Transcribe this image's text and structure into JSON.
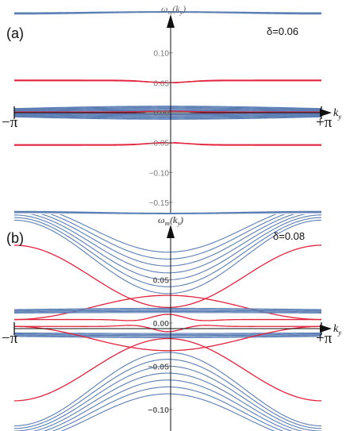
{
  "colors": {
    "blue": "#5b7fb5",
    "red": "#e3223c",
    "axis": "#111111",
    "tick_text": "#777777"
  },
  "chart_data": [
    {
      "type": "line",
      "panel_label": "(a)",
      "delta_text": "δ=0.06",
      "ylabel": {
        "main": "ω",
        "sub": "m",
        "paren": "(k",
        "sub2": "y",
        "close": ")"
      },
      "xlabel": {
        "main": "k",
        "sub": "y"
      },
      "x_left_label": "−π",
      "x_right_label": "+π",
      "xlim": [
        -3.1416,
        3.1416
      ],
      "ylim": [
        -0.17,
        0.17
      ],
      "yticks": [
        0.1,
        0.05,
        0.0,
        -0.05,
        -0.1,
        -0.15
      ],
      "ytick_labels": [
        "0.10",
        "0.05",
        "0.00",
        "−0.05",
        "−0.10",
        "−0.15"
      ],
      "series": [
        {
          "color": "blue",
          "kind": "cos",
          "offsets": [
            0.168,
            0.1686,
            0.1692
          ],
          "amps": [
            -0.003,
            -0.0025,
            -0.002
          ]
        },
        {
          "color": "red",
          "kind": "dip",
          "offsets": [
            0.054,
            0.0535,
            0.0545
          ],
          "amps": [
            -0.004,
            -0.003,
            -0.0045
          ]
        },
        {
          "color": "blue",
          "kind": "band",
          "offsets": [
            0.007,
            0.006,
            0.005,
            0.004,
            0.003,
            0.002,
            0.001
          ],
          "amps": [
            0.004,
            0.0035,
            0.003,
            0.0025,
            0.002,
            0.0015,
            0.001
          ]
        },
        {
          "color": "red",
          "kind": "dip",
          "offsets": [
            0.0012,
            -0.0012
          ],
          "amps": [
            0.0015,
            -0.0015
          ]
        },
        {
          "color": "blue",
          "kind": "band",
          "offsets": [
            -0.007,
            -0.006,
            -0.005,
            -0.004,
            -0.003,
            -0.002,
            -0.001
          ],
          "amps": [
            -0.004,
            -0.0035,
            -0.003,
            -0.0025,
            -0.002,
            -0.0015,
            -0.001
          ]
        },
        {
          "color": "red",
          "kind": "dip",
          "offsets": [
            -0.054,
            -0.0535,
            -0.0545
          ],
          "amps": [
            0.004,
            0.003,
            0.0045
          ]
        },
        {
          "color": "blue",
          "kind": "cos",
          "offsets": [
            -0.168,
            -0.1686,
            -0.1692
          ],
          "amps": [
            0.003,
            0.0025,
            0.002
          ]
        }
      ]
    },
    {
      "type": "line",
      "panel_label": "(b)",
      "delta_text": "δ=0.08",
      "ylabel": {
        "main": "ω",
        "sub": "m",
        "paren": "(k",
        "sub2": "y",
        "close": ")"
      },
      "xlabel": {
        "main": "k",
        "sub": "y"
      },
      "x_left_label": "−π",
      "x_right_label": "+π",
      "xlim": [
        -3.1416,
        3.1416
      ],
      "ylim": [
        -0.125,
        0.112
      ],
      "yticks": [
        0.05,
        0.0,
        -0.05,
        -0.1
      ],
      "ytick_labels": [
        "0.05",
        "0.00",
        "−0.05",
        "−0.10"
      ],
      "series": [
        {
          "color": "blue",
          "kind": "upper",
          "offsets": [
            0.034,
            0.042,
            0.05,
            0.058,
            0.066,
            0.074,
            0.082
          ],
          "amps": [
            0.085,
            0.08,
            0.075,
            0.07,
            0.065,
            0.06,
            0.055
          ]
        },
        {
          "color": "red",
          "kind": "upper",
          "offsets": [
            0.018
          ],
          "amps": [
            0.072
          ]
        },
        {
          "color": "red",
          "kind": "cross",
          "offsets": [
            0.018
          ],
          "amps": [
            0.014
          ]
        },
        {
          "color": "blue",
          "kind": "band",
          "offsets": [
            0.0155,
            0.0145,
            0.0135,
            0.0125,
            0.0115
          ],
          "amps": [
            0.0015,
            0.0012,
            0.001,
            0.0008,
            0.0006
          ]
        },
        {
          "color": "red",
          "kind": "wiggle",
          "offsets": [
            0.004,
            -0.004
          ],
          "amps": [
            0.006,
            -0.006
          ]
        },
        {
          "color": "blue",
          "kind": "band",
          "offsets": [
            -0.0155,
            -0.0145,
            -0.0135,
            -0.0125,
            -0.0115
          ],
          "amps": [
            -0.0015,
            -0.0012,
            -0.001,
            -0.0008,
            -0.0006
          ]
        },
        {
          "color": "red",
          "kind": "cross",
          "offsets": [
            -0.018
          ],
          "amps": [
            -0.014
          ]
        },
        {
          "color": "red",
          "kind": "upper",
          "offsets": [
            -0.018
          ],
          "amps": [
            -0.072
          ]
        },
        {
          "color": "blue",
          "kind": "upper",
          "offsets": [
            -0.034,
            -0.042,
            -0.05,
            -0.058,
            -0.066,
            -0.074,
            -0.082
          ],
          "amps": [
            -0.085,
            -0.08,
            -0.075,
            -0.07,
            -0.065,
            -0.06,
            -0.055
          ]
        }
      ]
    }
  ]
}
